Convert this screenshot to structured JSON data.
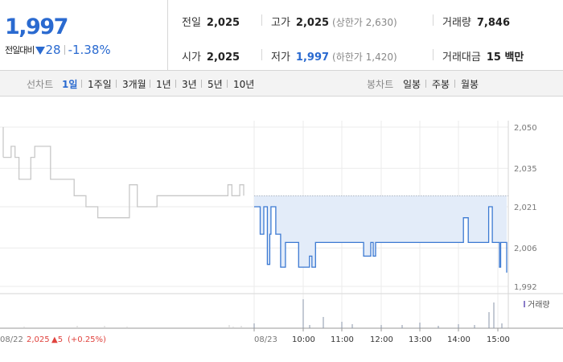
{
  "price": {
    "current": "1,997",
    "change_label": "전일대비",
    "change_amount": "28",
    "change_percent": "-1.38%",
    "direction": "down",
    "color": "#2a6ad0"
  },
  "stats": {
    "prev_close": {
      "label": "전일",
      "value": "2,025"
    },
    "high": {
      "label": "고가",
      "value": "2,025",
      "sub": "(상한가 2,630)"
    },
    "volume": {
      "label": "거래량",
      "value": "7,846"
    },
    "open": {
      "label": "시가",
      "value": "2,025"
    },
    "low": {
      "label": "저가",
      "value": "1,997",
      "sub": "(하한가 1,420)"
    },
    "amount": {
      "label": "거래대금",
      "value": "15 백만"
    }
  },
  "toolbar": {
    "line_label": "선차트",
    "line_periods": [
      "1일",
      "1주일",
      "3개월",
      "1년",
      "3년",
      "5년",
      "10년"
    ],
    "line_selected": "1일",
    "candle_label": "봉차트",
    "candle_periods": [
      "일봉",
      "주봉",
      "월봉"
    ]
  },
  "chart_data": {
    "type": "line",
    "y_ticks": [
      "2,050",
      "2,035",
      "2,021",
      "2,006",
      "1,992"
    ],
    "ylim": [
      1992,
      2050
    ],
    "x_ticks": [
      "08/23",
      "10:00",
      "11:00",
      "12:00",
      "13:00",
      "14:00",
      "15:00"
    ],
    "volume_legend": "거래량",
    "prev_day": {
      "date": "08/22",
      "close": "2,025",
      "change": "▲5",
      "change_pct": "(+0.25%)",
      "color": "#e0433e",
      "line_color": "#c8c8c8"
    },
    "baseline": 2025,
    "series_color": "#3b79d2",
    "fill_color": "#e3ecf9",
    "prev_series": [
      2039,
      2039,
      2043,
      2039,
      2031,
      2031,
      2031,
      2039,
      2043,
      2043,
      2043,
      2043,
      2031,
      2031,
      2031,
      2031,
      2031,
      2031,
      2025,
      2025,
      2025,
      2021,
      2021,
      2021,
      2017,
      2017,
      2017,
      2017,
      2017,
      2017,
      2017,
      2017,
      2029,
      2029,
      2021,
      2021,
      2021,
      2021,
      2021,
      2025,
      2025,
      2025,
      2025,
      2025,
      2025,
      2025,
      2025,
      2025,
      2025,
      2025,
      2025,
      2025,
      2025,
      2025,
      2025,
      2025,
      2025,
      2029,
      2025,
      2025,
      2029,
      2025
    ],
    "today_series": [
      2021,
      2021,
      2021,
      2021,
      2021,
      2011,
      2011,
      2011,
      2021,
      2021,
      2021,
      2000,
      2000,
      2011,
      2021,
      2021,
      2021,
      2021,
      2011,
      2011,
      2011,
      2011,
      1999,
      1999,
      1999,
      1999,
      2008,
      2008,
      2008,
      2008,
      2008,
      2008,
      2008,
      2008,
      2008,
      2008,
      2008,
      1999,
      1999,
      1999,
      1999,
      1999,
      1999,
      1999,
      1999,
      1999,
      2003,
      2003,
      1999,
      1999,
      1999,
      2008,
      2008,
      2008,
      2008,
      2008,
      2008,
      2008,
      2008,
      2008,
      2008,
      2008,
      2008,
      2008,
      2008,
      2008,
      2008,
      2008,
      2008,
      2008,
      2008,
      2008,
      2008,
      2008,
      2008,
      2008,
      2008,
      2008,
      2008,
      2008,
      2008,
      2008,
      2008,
      2008,
      2008,
      2008,
      2008,
      2008,
      2008,
      2008,
      2008,
      2003,
      2003,
      2003,
      2003,
      2003,
      2003,
      2008,
      2008,
      2003,
      2003,
      2008,
      2008,
      2008,
      2008,
      2008,
      2008,
      2008,
      2008,
      2008,
      2008,
      2008,
      2008,
      2008,
      2008,
      2008,
      2008,
      2008,
      2008,
      2008,
      2008,
      2008,
      2008,
      2008,
      2008,
      2008,
      2008,
      2008,
      2008,
      2008,
      2008,
      2008,
      2008,
      2008,
      2008,
      2008,
      2008,
      2008,
      2008,
      2008,
      2008,
      2008,
      2008,
      2008,
      2008,
      2008,
      2008,
      2008,
      2008,
      2008,
      2008,
      2008,
      2008,
      2008,
      2008,
      2008,
      2008,
      2008,
      2008,
      2008,
      2008,
      2008,
      2008,
      2008,
      2008,
      2008,
      2008,
      2008,
      2008,
      2008,
      2008,
      2008,
      2008,
      2008,
      2017,
      2017,
      2017,
      2017,
      2008,
      2008,
      2008,
      2008,
      2008,
      2008,
      2008,
      2008,
      2008,
      2008,
      2008,
      2008,
      2008,
      2008,
      2008,
      2008,
      2008,
      2021,
      2021,
      2021,
      2008,
      2008,
      2008,
      2008,
      2008,
      2008,
      1999,
      2008,
      2008,
      2008,
      2008,
      2008,
      1997
    ]
  }
}
